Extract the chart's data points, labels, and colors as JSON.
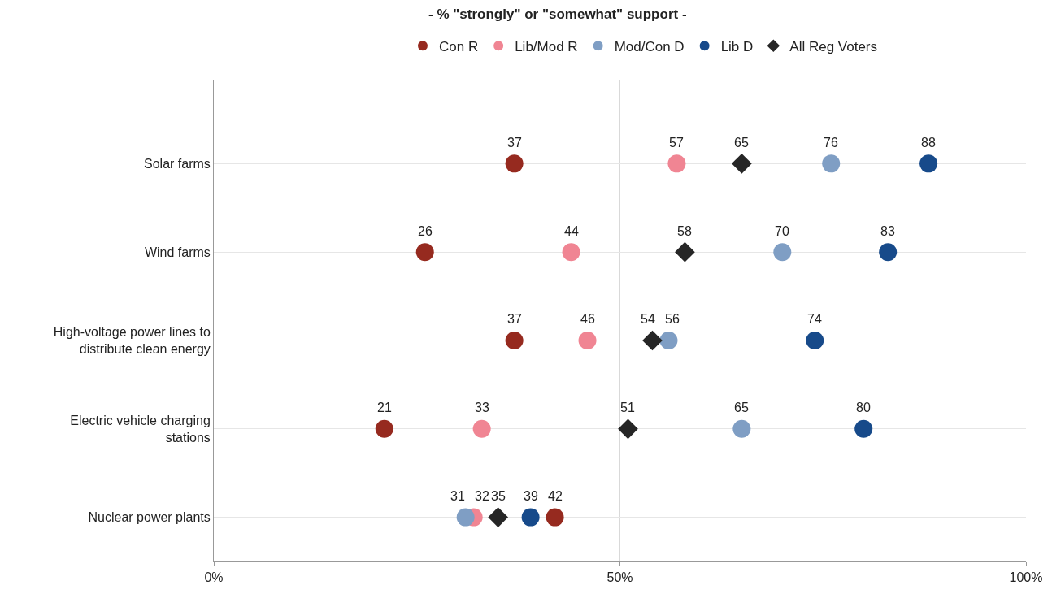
{
  "chart_data": {
    "type": "scatter",
    "orientation": "horizontal",
    "title": "- % \"strongly\" or \"somewhat\" support -",
    "categories": [
      "Solar farms",
      "Wind farms",
      "High-voltage power lines to distribute clean energy",
      "Electric vehicle charging stations",
      "Nuclear power plants"
    ],
    "series": [
      {
        "name": "Con R",
        "color": "#962a1f",
        "marker": "circle",
        "values": [
          37,
          26,
          37,
          21,
          42
        ]
      },
      {
        "name": "Lib/Mod R",
        "color": "#f08593",
        "marker": "circle",
        "values": [
          57,
          44,
          46,
          33,
          32
        ]
      },
      {
        "name": "Mod/Con D",
        "color": "#7f9ec4",
        "marker": "circle",
        "values": [
          76,
          70,
          56,
          65,
          31
        ]
      },
      {
        "name": "Lib D",
        "color": "#174a8a",
        "marker": "circle",
        "values": [
          88,
          83,
          74,
          80,
          39
        ]
      },
      {
        "name": "All Reg Voters",
        "color": "#262626",
        "marker": "diamond",
        "values": [
          65,
          58,
          54,
          51,
          35
        ]
      }
    ],
    "xlim": [
      0,
      100
    ],
    "xticks": [
      {
        "value": 0,
        "label": "0%"
      },
      {
        "value": 50,
        "label": "50%"
      },
      {
        "value": 100,
        "label": "100%"
      }
    ],
    "data_labels": true,
    "grid": true,
    "legend": "top"
  }
}
